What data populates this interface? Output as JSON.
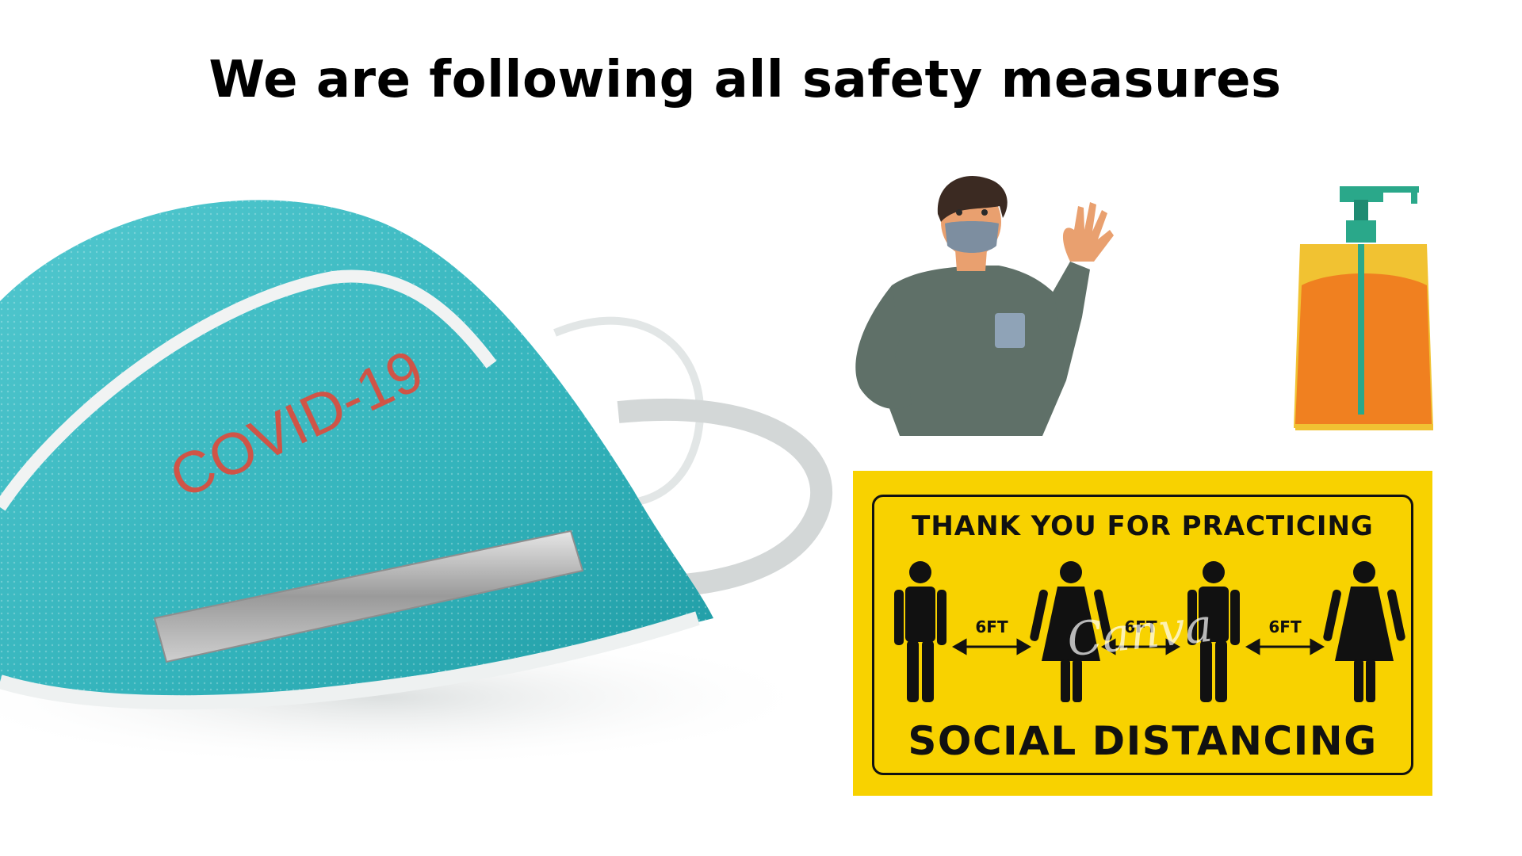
{
  "page": {
    "title": "We are following all safety measures"
  },
  "mask": {
    "print": "COVID-19",
    "colors": {
      "fabric": "#3fbcc3",
      "print": "#e04a3a"
    },
    "icon": "face-mask-icon"
  },
  "person": {
    "icon": "masked-person-waving-icon",
    "colors": {
      "shirt": "#5f7068",
      "skin": "#e9a06f"
    }
  },
  "sanitizer": {
    "icon": "sanitizer-bottle-icon",
    "colors": {
      "liquid": "#f08020",
      "bottle": "#f1c232",
      "pump": "#2aa88a"
    }
  },
  "sign": {
    "top_text": "THANK YOU FOR PRACTICING",
    "bottom_text": "SOCIAL DISTANCING",
    "distance_labels": [
      "6FT",
      "6FT",
      "6FT"
    ],
    "watermark": "Canva",
    "colors": {
      "background": "#f8d200",
      "ink": "#111111"
    }
  }
}
